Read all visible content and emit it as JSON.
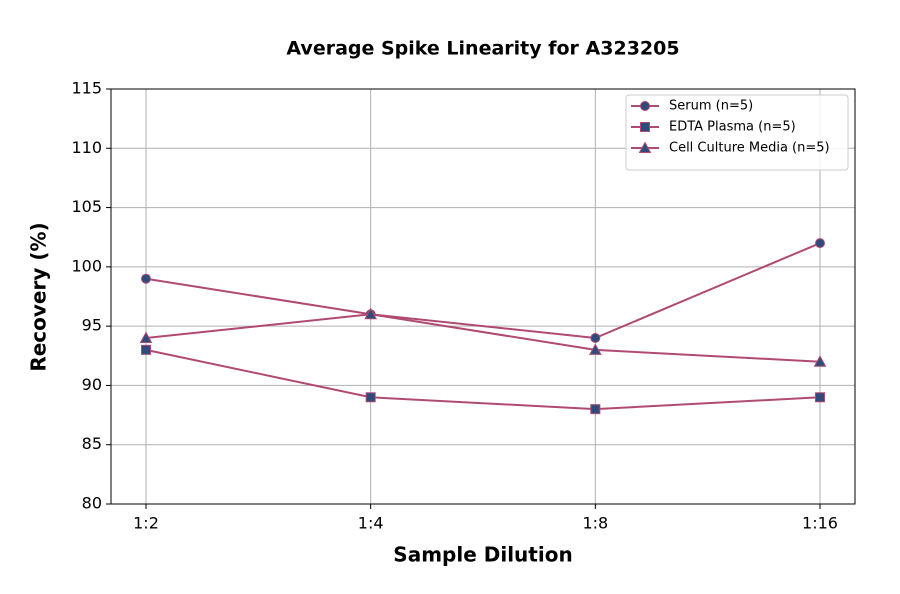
{
  "chart_data": {
    "type": "line",
    "title": "Average Spike Linearity for A323205",
    "x_label": "Sample Dilution",
    "y_label": "Recovery (%)",
    "categories": [
      "1:2",
      "1:4",
      "1:8",
      "1:16"
    ],
    "series": [
      {
        "name": "Serum (n=5)",
        "color": "#b04a72",
        "marker": "circle",
        "marker_color": "#2f4b7c",
        "values": [
          99,
          96,
          94,
          102
        ]
      },
      {
        "name": "EDTA Plasma (n=5)",
        "color": "#b04a72",
        "marker": "square",
        "marker_color": "#2f4b7c",
        "values": [
          93,
          89,
          88,
          89
        ]
      },
      {
        "name": "Cell Culture Media (n=5)",
        "color": "#b04a72",
        "marker": "triangle",
        "marker_color": "#2f4b7c",
        "values": [
          94,
          96,
          93,
          92
        ]
      }
    ],
    "ylim": [
      80,
      115
    ],
    "yticks": [
      80,
      85,
      90,
      95,
      100,
      105,
      110,
      115
    ],
    "grid": true,
    "legend": "upper right"
  }
}
